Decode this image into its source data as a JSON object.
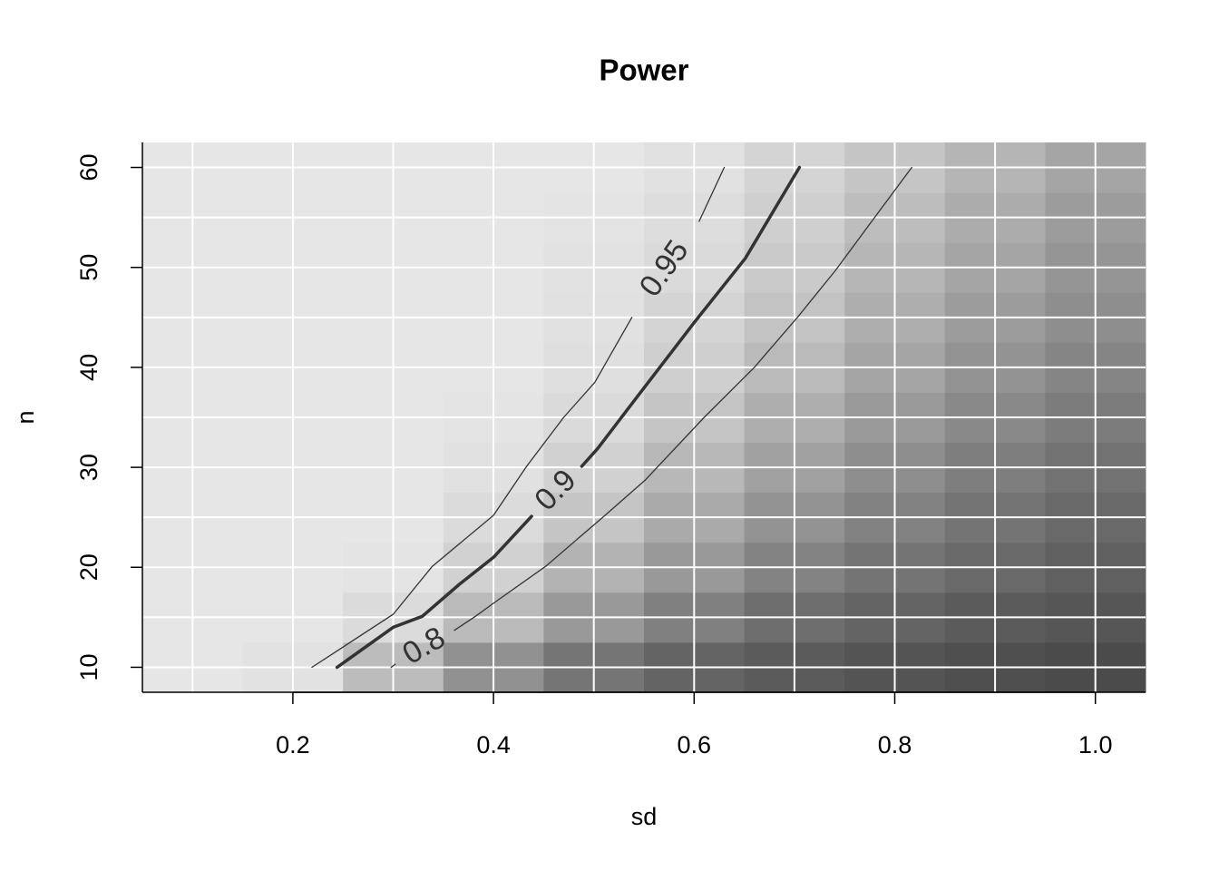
{
  "chart_data": {
    "type": "heatmap",
    "title": "Power",
    "x_label": "sd",
    "y_label": "n",
    "x": [
      0.1,
      0.2,
      0.3,
      0.4,
      0.5,
      0.6,
      0.7,
      0.8,
      0.9,
      1.0
    ],
    "y": [
      10,
      15,
      20,
      25,
      30,
      35,
      40,
      45,
      50,
      55,
      60
    ],
    "z": [
      [
        1.0,
        0.98,
        0.76,
        0.52,
        0.36,
        0.26,
        0.21,
        0.17,
        0.14,
        0.12
      ],
      [
        1.0,
        1.0,
        0.94,
        0.75,
        0.56,
        0.42,
        0.32,
        0.26,
        0.21,
        0.18
      ],
      [
        1.0,
        1.0,
        0.99,
        0.88,
        0.71,
        0.56,
        0.44,
        0.35,
        0.29,
        0.24
      ],
      [
        1.0,
        1.0,
        1.0,
        0.94,
        0.81,
        0.66,
        0.53,
        0.43,
        0.35,
        0.29
      ],
      [
        1.0,
        1.0,
        1.0,
        0.97,
        0.88,
        0.74,
        0.61,
        0.5,
        0.41,
        0.34
      ],
      [
        1.0,
        1.0,
        1.0,
        0.99,
        0.93,
        0.81,
        0.68,
        0.57,
        0.47,
        0.4
      ],
      [
        1.0,
        1.0,
        1.0,
        1.0,
        0.96,
        0.87,
        0.75,
        0.63,
        0.53,
        0.45
      ],
      [
        1.0,
        1.0,
        1.0,
        1.0,
        0.97,
        0.9,
        0.8,
        0.68,
        0.58,
        0.5
      ],
      [
        1.0,
        1.0,
        1.0,
        1.0,
        0.98,
        0.93,
        0.84,
        0.73,
        0.63,
        0.54
      ],
      [
        1.0,
        1.0,
        1.0,
        1.0,
        0.99,
        0.95,
        0.87,
        0.77,
        0.67,
        0.58
      ],
      [
        1.0,
        1.0,
        1.0,
        1.0,
        1.0,
        0.97,
        0.9,
        0.81,
        0.72,
        0.63
      ]
    ],
    "colors": {
      "low": "#4b4b4b",
      "high": "#e6e6e6"
    },
    "contours": [
      {
        "level": 0.8,
        "color": "#333333",
        "lwd": 1.3,
        "x": [
          0.298,
          0.302,
          null,
          0.361,
          0.382,
          0.4,
          0.452,
          0.51,
          0.551,
          0.61,
          0.66,
          0.703,
          0.741,
          0.777,
          0.817
        ],
        "y": [
          10,
          10.3,
          null,
          13.7,
          15.1,
          16.4,
          20.1,
          25.1,
          28.7,
          35,
          40,
          45,
          49.7,
          54.6,
          60
        ]
      },
      {
        "level": 0.9,
        "color": "#333333",
        "lwd": 3.5,
        "x": [
          0.244,
          0.3,
          0.329,
          0.366,
          0.4,
          0.438,
          null,
          0.488,
          0.504,
          0.542,
          0.601,
          0.651,
          0.705
        ],
        "y": [
          10,
          14.0,
          15.1,
          18.3,
          21,
          25.1,
          null,
          30.1,
          31.9,
          36.9,
          44.6,
          50.9,
          60
        ]
      },
      {
        "level": 0.95,
        "color": "#333333",
        "lwd": 1.3,
        "x": [
          0.219,
          0.3,
          0.339,
          0.4,
          0.433,
          0.47,
          0.501,
          0.538,
          null,
          0.605,
          0.63
        ],
        "y": [
          10,
          15.3,
          20.1,
          25.2,
          30.1,
          35,
          38.5,
          45,
          null,
          54.6,
          60
        ]
      }
    ],
    "xlim": [
      0.05,
      1.05
    ],
    "ylim": [
      7.5,
      62.5
    ],
    "xticks": [
      0.2,
      0.4,
      0.6,
      0.8,
      {
        "value": 1.0,
        "label": "1.0"
      }
    ],
    "yticks": [
      10,
      20,
      30,
      40,
      50,
      60
    ],
    "grid": true
  }
}
